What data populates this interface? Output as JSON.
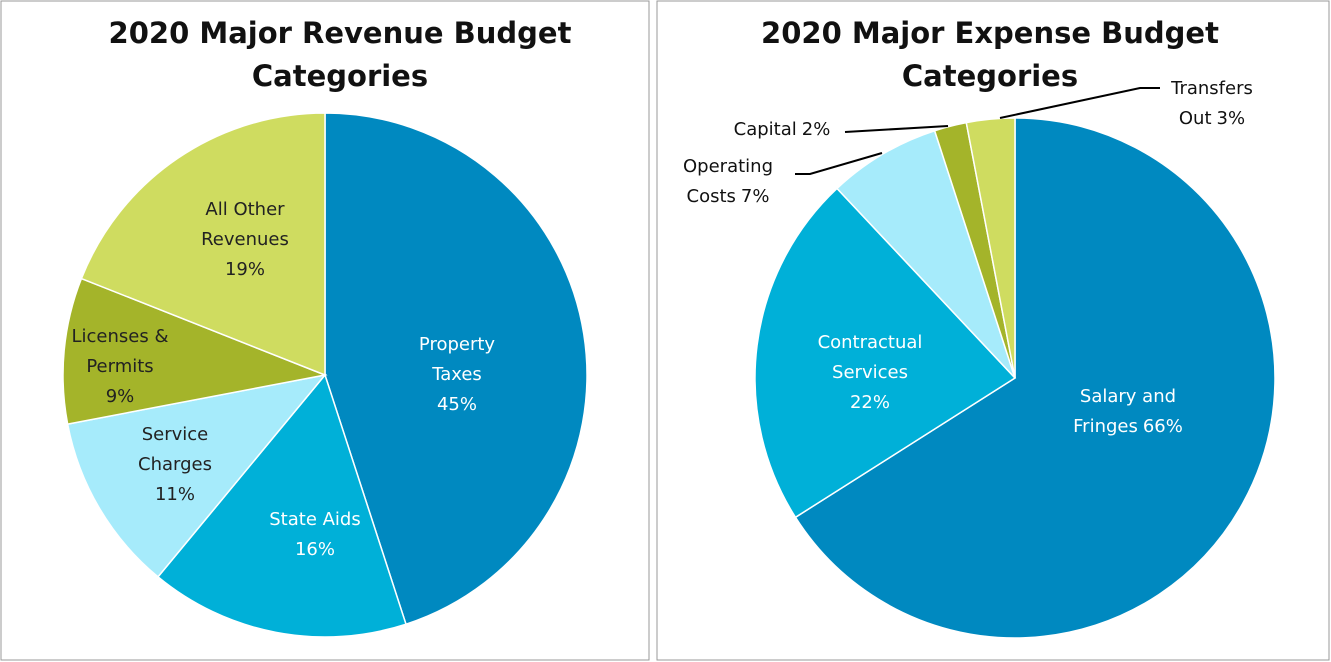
{
  "chart_data": [
    {
      "type": "pie",
      "title": "2020 Major Revenue Budget Categories",
      "categories": [
        "Property Taxes",
        "State Aids",
        "Service Charges",
        "Licenses & Permits",
        "All Other Revenues"
      ],
      "values": [
        45,
        16,
        11,
        9,
        19
      ],
      "value_labels": [
        "45%",
        "16%",
        "11%",
        "9%",
        "19%"
      ],
      "colors": [
        "#0089c0",
        "#00b0d8",
        "#a6ebfb",
        "#a4b42a",
        "#cfdc60"
      ]
    },
    {
      "type": "pie",
      "title": "2020 Major Expense Budget Categories",
      "categories": [
        "Salary and Fringes",
        "Contractual Services",
        "Operating Costs",
        "Capital",
        "Transfers Out"
      ],
      "values": [
        66,
        22,
        7,
        2,
        3
      ],
      "value_labels": [
        "66%",
        "22%",
        "7%",
        "2%",
        "3%"
      ],
      "colors": [
        "#0089c0",
        "#00b0d8",
        "#a6ebfb",
        "#a4b42a",
        "#cfdc60"
      ]
    }
  ]
}
